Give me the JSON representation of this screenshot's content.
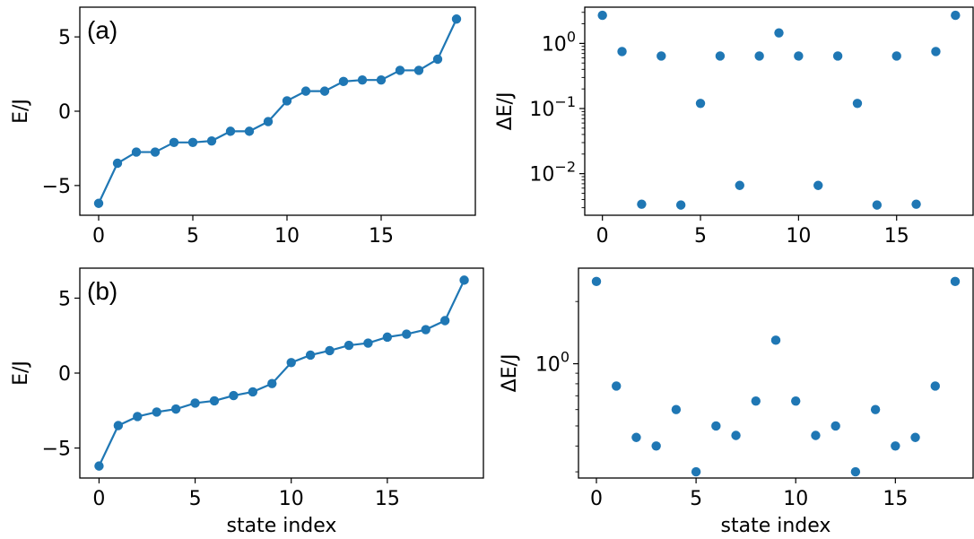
{
  "colors": {
    "series": "#1f77b4",
    "axis": "#000000"
  },
  "chart_data": [
    {
      "id": "a-left",
      "type": "line",
      "panel_label": "(a)",
      "xlabel": "",
      "ylabel": "E/J",
      "xlim": [
        -1,
        20
      ],
      "ylim": [
        -7,
        7
      ],
      "xticks": [
        0,
        5,
        10,
        15
      ],
      "yticks": [
        5,
        0,
        -5
      ],
      "ytick_labels": [
        "5",
        "0",
        "−5"
      ],
      "markers": true,
      "x": [
        0,
        1,
        2,
        3,
        4,
        5,
        6,
        7,
        8,
        9,
        10,
        11,
        12,
        13,
        14,
        15,
        16,
        17,
        18,
        19
      ],
      "y": [
        -6.2,
        -3.5,
        -2.75,
        -2.75,
        -2.1,
        -2.1,
        -2.0,
        -1.35,
        -1.35,
        -0.7,
        0.7,
        1.35,
        1.35,
        2.0,
        2.1,
        2.1,
        2.75,
        2.75,
        3.5,
        6.2
      ]
    },
    {
      "id": "a-right",
      "type": "scatter",
      "xlabel": "",
      "ylabel": "ΔE/J",
      "yscale": "log",
      "xlim": [
        -0.9,
        18.9
      ],
      "ylim": [
        0.0023,
        3.6
      ],
      "xticks": [
        0,
        5,
        10,
        15
      ],
      "yticks": [
        1,
        0.1,
        0.01
      ],
      "ytick_labels": [
        {
          "base": "10",
          "exp": "0"
        },
        {
          "base": "10",
          "exp": "−1"
        },
        {
          "base": "10",
          "exp": "−2"
        }
      ],
      "x": [
        0,
        1,
        2,
        3,
        4,
        5,
        6,
        7,
        8,
        9,
        10,
        11,
        12,
        13,
        14,
        15,
        16,
        17,
        18
      ],
      "y": [
        2.7,
        0.75,
        0.0034,
        0.64,
        0.0033,
        0.12,
        0.64,
        0.0066,
        0.64,
        1.45,
        0.64,
        0.0066,
        0.64,
        0.12,
        0.0033,
        0.64,
        0.0034,
        0.75,
        2.7
      ]
    },
    {
      "id": "b-left",
      "type": "line",
      "panel_label": "(b)",
      "xlabel": "state index",
      "ylabel": "E/J",
      "xlim": [
        -1,
        20
      ],
      "ylim": [
        -7,
        7
      ],
      "xticks": [
        0,
        5,
        10,
        15
      ],
      "yticks": [
        5,
        0,
        -5
      ],
      "ytick_labels": [
        "5",
        "0",
        "−5"
      ],
      "markers": true,
      "x": [
        0,
        1,
        2,
        3,
        4,
        5,
        6,
        7,
        8,
        9,
        10,
        11,
        12,
        13,
        14,
        15,
        16,
        17,
        18,
        19
      ],
      "y": [
        -6.2,
        -3.5,
        -2.9,
        -2.6,
        -2.4,
        -2.0,
        -1.85,
        -1.5,
        -1.25,
        -0.7,
        0.7,
        1.2,
        1.5,
        1.85,
        2.0,
        2.4,
        2.6,
        2.9,
        3.5,
        6.2
      ]
    },
    {
      "id": "b-right",
      "type": "scatter",
      "xlabel": "state index",
      "ylabel": "ΔE/J",
      "yscale": "log",
      "xlim": [
        -0.9,
        18.9
      ],
      "ylim": [
        0.28,
        2.9
      ],
      "xticks": [
        0,
        5,
        10,
        15
      ],
      "yticks": [
        1
      ],
      "ytick_labels": [
        {
          "base": "10",
          "exp": "0"
        }
      ],
      "minor_yticks": [
        0.4,
        0.6
      ],
      "x": [
        0,
        1,
        2,
        3,
        4,
        5,
        6,
        7,
        8,
        9,
        10,
        11,
        12,
        13,
        14,
        15,
        16,
        17,
        18
      ],
      "y": [
        2.5,
        0.78,
        0.44,
        0.4,
        0.6,
        0.3,
        0.5,
        0.45,
        0.66,
        1.3,
        0.66,
        0.45,
        0.5,
        0.3,
        0.6,
        0.4,
        0.44,
        0.78,
        2.5
      ]
    }
  ]
}
